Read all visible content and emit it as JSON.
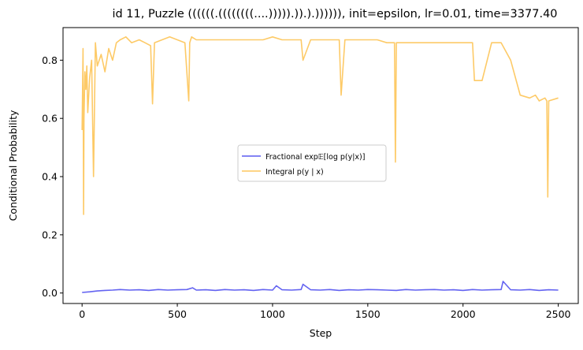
{
  "chart_data": {
    "type": "line",
    "title": "id 11, Puzzle ((((((.((((((((....))))).)).).)))))), init=epsilon, lr=0.01, time=3377.40",
    "xlabel": "Step",
    "ylabel": "Conditional Probability",
    "xlim": [
      -100,
      2605
    ],
    "ylim": [
      -0.036,
      0.912
    ],
    "xticks": [
      0,
      500,
      1000,
      1500,
      2000,
      2500
    ],
    "yticks": [
      0.0,
      0.2,
      0.4,
      0.6,
      0.8
    ],
    "xtick_labels": [
      "0",
      "500",
      "1000",
      "1500",
      "2000",
      "2500"
    ],
    "ytick_labels": [
      "0.0",
      "0.2",
      "0.4",
      "0.6",
      "0.8"
    ],
    "grid": false,
    "legend_position": "center-right",
    "legend": [
      "Fractional exp𝔼[log p(y|x)]",
      "Integral p(y | x)"
    ],
    "series": [
      {
        "name": "Fractional exp𝔼[log p(y|x)]",
        "color": "#5b5bf0",
        "x": [
          0,
          40,
          80,
          120,
          160,
          200,
          250,
          300,
          350,
          400,
          450,
          500,
          550,
          580,
          600,
          650,
          700,
          750,
          800,
          850,
          900,
          950,
          1000,
          1020,
          1050,
          1100,
          1150,
          1160,
          1200,
          1250,
          1300,
          1350,
          1400,
          1450,
          1500,
          1550,
          1600,
          1650,
          1700,
          1750,
          1800,
          1850,
          1900,
          1950,
          2000,
          2050,
          2100,
          2150,
          2200,
          2210,
          2250,
          2300,
          2350,
          2400,
          2450,
          2500
        ],
        "y": [
          0.002,
          0.004,
          0.007,
          0.009,
          0.01,
          0.012,
          0.01,
          0.011,
          0.009,
          0.012,
          0.01,
          0.011,
          0.012,
          0.018,
          0.01,
          0.011,
          0.009,
          0.012,
          0.01,
          0.011,
          0.009,
          0.012,
          0.01,
          0.025,
          0.011,
          0.01,
          0.012,
          0.03,
          0.011,
          0.01,
          0.012,
          0.009,
          0.011,
          0.01,
          0.012,
          0.011,
          0.01,
          0.009,
          0.012,
          0.01,
          0.011,
          0.012,
          0.01,
          0.011,
          0.009,
          0.012,
          0.01,
          0.011,
          0.012,
          0.04,
          0.011,
          0.01,
          0.012,
          0.009,
          0.011,
          0.01
        ]
      },
      {
        "name": "Integral p(y | x)",
        "color": "#fdc75f",
        "x": [
          0,
          5,
          8,
          10,
          15,
          20,
          25,
          30,
          40,
          50,
          60,
          70,
          80,
          100,
          120,
          140,
          160,
          180,
          200,
          230,
          260,
          300,
          330,
          360,
          370,
          380,
          420,
          460,
          500,
          540,
          560,
          565,
          575,
          600,
          650,
          700,
          750,
          800,
          850,
          900,
          950,
          1000,
          1050,
          1100,
          1150,
          1160,
          1200,
          1250,
          1300,
          1350,
          1360,
          1380,
          1400,
          1450,
          1500,
          1550,
          1600,
          1640,
          1645,
          1650,
          1700,
          1750,
          1800,
          1850,
          1900,
          1950,
          2000,
          2050,
          2060,
          2100,
          2150,
          2200,
          2250,
          2300,
          2350,
          2380,
          2400,
          2430,
          2440,
          2445,
          2450,
          2500
        ],
        "y": [
          0.56,
          0.84,
          0.27,
          0.6,
          0.76,
          0.7,
          0.78,
          0.62,
          0.74,
          0.8,
          0.4,
          0.86,
          0.78,
          0.82,
          0.76,
          0.84,
          0.8,
          0.86,
          0.87,
          0.88,
          0.86,
          0.87,
          0.86,
          0.85,
          0.65,
          0.86,
          0.87,
          0.88,
          0.87,
          0.86,
          0.66,
          0.86,
          0.88,
          0.87,
          0.87,
          0.87,
          0.87,
          0.87,
          0.87,
          0.87,
          0.87,
          0.88,
          0.87,
          0.87,
          0.87,
          0.8,
          0.87,
          0.87,
          0.87,
          0.87,
          0.68,
          0.87,
          0.87,
          0.87,
          0.87,
          0.87,
          0.86,
          0.86,
          0.45,
          0.86,
          0.86,
          0.86,
          0.86,
          0.86,
          0.86,
          0.86,
          0.86,
          0.86,
          0.73,
          0.73,
          0.86,
          0.86,
          0.8,
          0.68,
          0.67,
          0.68,
          0.66,
          0.67,
          0.66,
          0.33,
          0.66,
          0.67
        ]
      }
    ]
  }
}
